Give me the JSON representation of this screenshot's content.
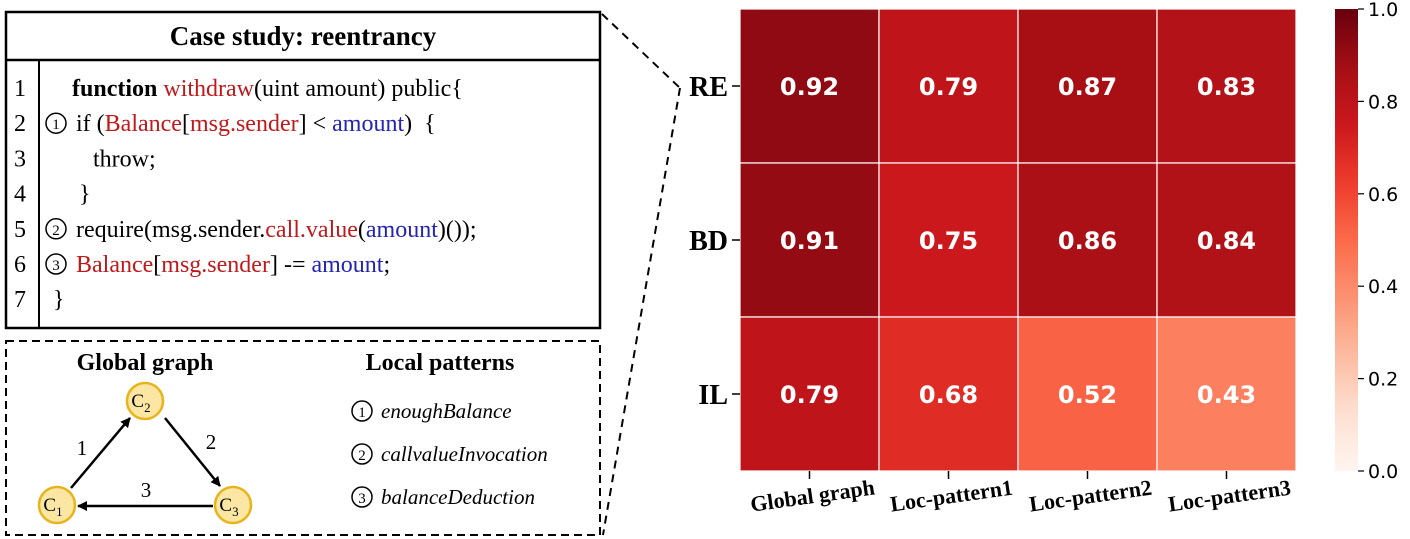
{
  "case_study": {
    "title": "Case study: reentrancy",
    "line_numbers": [
      "1",
      "2",
      "3",
      "4",
      "5",
      "6",
      "7"
    ],
    "lines": [
      [
        {
          "t": "function ",
          "c": "kw"
        },
        {
          "t": "withdraw",
          "c": "red"
        },
        {
          "t": "(uint amount) public",
          "c": "plain"
        },
        {
          "t": "{",
          "c": "plain"
        }
      ],
      [
        {
          "t": "if (",
          "c": "plain"
        },
        {
          "t": "Balance",
          "c": "red"
        },
        {
          "t": "[",
          "c": "plain"
        },
        {
          "t": "msg.sender",
          "c": "red"
        },
        {
          "t": "] < ",
          "c": "plain"
        },
        {
          "t": "amount",
          "c": "blue"
        },
        {
          "t": ")  {",
          "c": "plain"
        }
      ],
      [
        {
          "t": "throw;",
          "c": "plain"
        }
      ],
      [
        {
          "t": "}",
          "c": "plain"
        }
      ],
      [
        {
          "t": "require(msg.sender.",
          "c": "plain"
        },
        {
          "t": "call.value",
          "c": "red"
        },
        {
          "t": "(",
          "c": "plain"
        },
        {
          "t": "amount",
          "c": "blue"
        },
        {
          "t": ")());",
          "c": "plain"
        }
      ],
      [
        {
          "t": "Balance",
          "c": "red"
        },
        {
          "t": "[",
          "c": "plain"
        },
        {
          "t": "msg.sender",
          "c": "red"
        },
        {
          "t": "] -= ",
          "c": "plain"
        },
        {
          "t": "amount",
          "c": "blue"
        },
        {
          "t": ";",
          "c": "plain"
        }
      ],
      [
        {
          "t": "}",
          "c": "plain"
        }
      ]
    ],
    "line_markers": [
      "",
      "1",
      "",
      "",
      "2",
      "3",
      ""
    ]
  },
  "graph_panel": {
    "global_title": "Global graph",
    "local_title": "Local patterns",
    "nodes": [
      {
        "main": "C",
        "sub": "2"
      },
      {
        "main": "C",
        "sub": "1"
      },
      {
        "main": "C",
        "sub": "3"
      }
    ],
    "edge_labels": [
      "1",
      "2",
      "3"
    ],
    "patterns": [
      {
        "num": "1",
        "label": "enoughBalance"
      },
      {
        "num": "2",
        "label": "callvalueInvocation"
      },
      {
        "num": "3",
        "label": "balanceDeduction"
      }
    ]
  },
  "chart_data": {
    "type": "heatmap",
    "rows": [
      "RE",
      "BD",
      "IL"
    ],
    "columns": [
      "Global graph",
      "Loc-pattern1",
      "Loc-pattern2",
      "Loc-pattern3"
    ],
    "values": [
      [
        0.92,
        0.79,
        0.87,
        0.83
      ],
      [
        0.91,
        0.75,
        0.86,
        0.84
      ],
      [
        0.79,
        0.68,
        0.52,
        0.43
      ]
    ],
    "colorbar": {
      "min": 0.0,
      "max": 1.0,
      "ticks": [
        "0.0",
        "0.2",
        "0.4",
        "0.6",
        "0.8",
        "1.0"
      ],
      "colormap": "Reds"
    }
  },
  "colors": {
    "red_text": "#c0181b",
    "blue_text": "#2323b4",
    "node_fill": "#fbe6a3",
    "node_stroke": "#e8b41c"
  }
}
